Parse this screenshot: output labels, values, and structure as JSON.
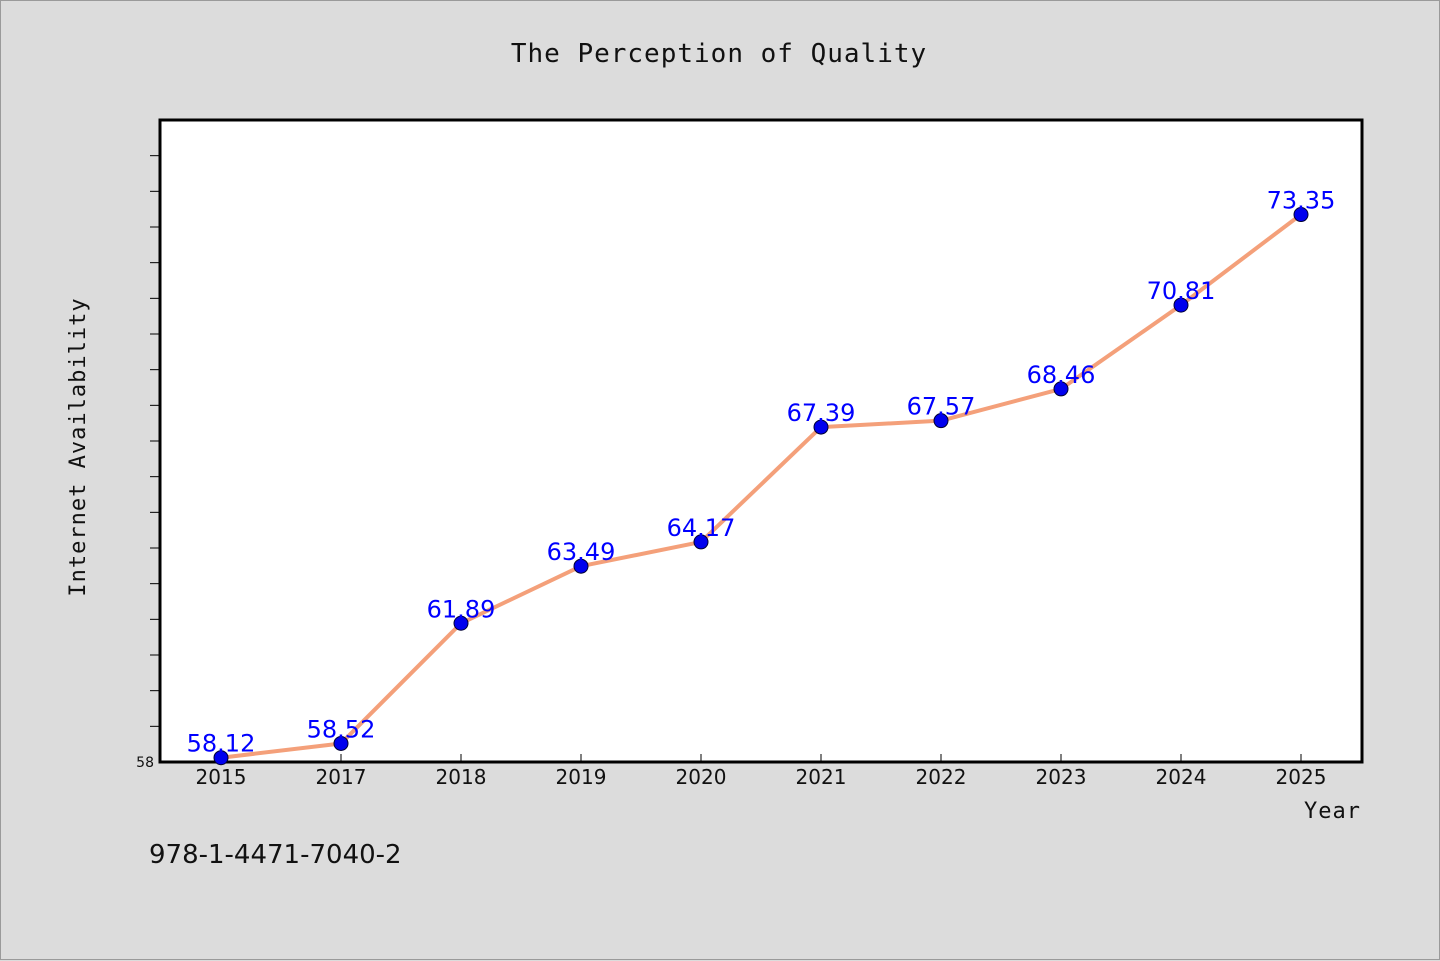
{
  "chart_data": {
    "type": "line",
    "title": "The Perception of Quality",
    "xlabel": "Year",
    "ylabel": "Internet Availability",
    "categories": [
      "2015",
      "2017",
      "2018",
      "2019",
      "2020",
      "2021",
      "2022",
      "2023",
      "2024",
      "2025"
    ],
    "series": [
      {
        "values": [
          58.12,
          58.52,
          61.89,
          63.49,
          64.17,
          67.39,
          67.57,
          68.46,
          70.81,
          73.35
        ],
        "data_labels": [
          "58.12",
          "58.52",
          "61.89",
          "63.49",
          "64.17",
          "67.39",
          "67.57",
          "68.46",
          "70.81",
          "73.35"
        ],
        "line_color": "#f4a07a",
        "marker_color": "#0000ee"
      }
    ],
    "ylim": [
      58,
      76
    ],
    "yticks_labeled": [
      "58"
    ],
    "grid": false,
    "legend": "none"
  },
  "footer": {
    "isbn": "978-1-4471-7040-2"
  },
  "colors": {
    "background": "#dcdcdc",
    "plot_background": "#ffffff",
    "line": "#f4a07a",
    "marker": "#0000ee",
    "data_label": "#0000ff"
  }
}
